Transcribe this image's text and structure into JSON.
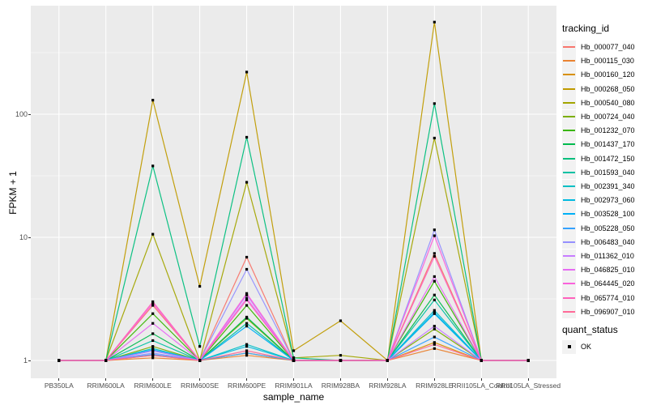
{
  "figure": {
    "ylabel": "FPKM + 1",
    "xlabel": "sample_name",
    "tracking_legend_title": "tracking_id",
    "quant_legend_title": "quant_status",
    "quant_legend_item": "OK"
  },
  "chart_data": {
    "type": "line",
    "title": "",
    "xlabel": "sample_name",
    "ylabel": "FPKM + 1",
    "y_scale": "log10",
    "y_ticks": [
      1,
      10,
      100
    ],
    "y_minor_ticks": [
      3.162,
      31.623,
      316.228
    ],
    "ylim_approx": [
      0.72,
      750
    ],
    "grid": true,
    "panel_background": "#EBEBEB",
    "grid_color": "#FFFFFF",
    "legend_title": "tracking_id",
    "legend_position": "right",
    "quant_status": {
      "title": "quant_status",
      "items": [
        "OK"
      ],
      "marker": "black-square"
    },
    "categories": [
      "PB350LA",
      "RRIM600LA",
      "RRIM600LE",
      "RRIM600SE",
      "RRIM600PE",
      "RRIM901LA",
      "RRIM928BA",
      "RRIM928LA",
      "RRIM928LE",
      "RRII105LA_Control",
      "RRII105LA_Stressed"
    ],
    "series": [
      {
        "name": "Hb_000077_040",
        "color": "#F8766D",
        "values": [
          1,
          1,
          2.8,
          1,
          6.9,
          1,
          1,
          1,
          7.4,
          1,
          1
        ]
      },
      {
        "name": "Hb_000115_030",
        "color": "#EA8331",
        "values": [
          1,
          1,
          1.05,
          1,
          1.1,
          1,
          1,
          1,
          1.25,
          1,
          1
        ]
      },
      {
        "name": "Hb_000160_120",
        "color": "#D89000",
        "values": [
          1,
          1,
          1.1,
          1,
          1.15,
          1,
          1,
          1,
          1.4,
          1,
          1
        ]
      },
      {
        "name": "Hb_000268_050",
        "color": "#C09B00",
        "values": [
          1,
          1,
          130,
          4,
          220,
          1.2,
          2.1,
          1,
          560,
          1,
          1
        ]
      },
      {
        "name": "Hb_000540_080",
        "color": "#A3A500",
        "values": [
          1,
          1,
          10.6,
          1,
          28,
          1.05,
          1.1,
          1,
          64,
          1,
          1
        ]
      },
      {
        "name": "Hb_000724_040",
        "color": "#7CAE00",
        "values": [
          1,
          1,
          1.3,
          1,
          2.2,
          1,
          1,
          1,
          1.8,
          1,
          1
        ]
      },
      {
        "name": "Hb_001232_070",
        "color": "#39B600",
        "values": [
          1,
          1,
          2.4,
          1,
          2.8,
          1,
          1,
          1,
          4.4,
          1,
          1
        ]
      },
      {
        "name": "Hb_001437_170",
        "color": "#00BB4E",
        "values": [
          1,
          1,
          1.65,
          1,
          2.25,
          1,
          1,
          1,
          3.4,
          1,
          1
        ]
      },
      {
        "name": "Hb_001472_150",
        "color": "#00BF7D",
        "values": [
          1,
          1,
          38,
          1.3,
          65,
          1.05,
          1,
          1,
          122,
          1,
          1
        ]
      },
      {
        "name": "Hb_001593_040",
        "color": "#00C1A3",
        "values": [
          1,
          1,
          1.45,
          1,
          2.0,
          1,
          1,
          1,
          3.1,
          1,
          1
        ]
      },
      {
        "name": "Hb_002391_340",
        "color": "#00BFC4",
        "values": [
          1,
          1,
          1.25,
          1,
          1.35,
          1,
          1,
          1,
          2.55,
          1,
          1
        ]
      },
      {
        "name": "Hb_002973_060",
        "color": "#00BAE0",
        "values": [
          1,
          1,
          1.2,
          1,
          1.3,
          1,
          1,
          1,
          2.4,
          1,
          1
        ]
      },
      {
        "name": "Hb_003528_100",
        "color": "#00B0F6",
        "values": [
          1,
          1,
          1.22,
          1,
          1.9,
          1,
          1,
          1,
          2.45,
          1,
          1
        ]
      },
      {
        "name": "Hb_005228_050",
        "color": "#35A2FF",
        "values": [
          1,
          1,
          1.12,
          1,
          1.15,
          1,
          1,
          1,
          1.55,
          1,
          1
        ]
      },
      {
        "name": "Hb_006483_040",
        "color": "#9590FF",
        "values": [
          1,
          1,
          1.15,
          1,
          5.5,
          1,
          1,
          1,
          11.5,
          1,
          1
        ]
      },
      {
        "name": "Hb_011362_010",
        "color": "#C77CFF",
        "values": [
          1,
          1,
          1.2,
          1,
          3.4,
          1,
          1,
          1,
          1.9,
          1,
          1
        ]
      },
      {
        "name": "Hb_046825_010",
        "color": "#E76BF3",
        "values": [
          1,
          1,
          2.0,
          1,
          3.2,
          1,
          1,
          1,
          4.8,
          1,
          1
        ]
      },
      {
        "name": "Hb_064445_020",
        "color": "#FA62DB",
        "values": [
          1,
          1,
          2.9,
          1,
          3.5,
          1,
          1,
          1,
          10.3,
          1,
          1
        ]
      },
      {
        "name": "Hb_065774_010",
        "color": "#FF62BC",
        "values": [
          1,
          1,
          3.0,
          1,
          3.1,
          1,
          1,
          1,
          7.0,
          1,
          1
        ]
      },
      {
        "name": "Hb_096907_010",
        "color": "#FF6A98",
        "values": [
          1,
          1,
          1.1,
          1,
          1.2,
          1,
          1,
          1,
          1.35,
          1,
          1
        ]
      }
    ]
  }
}
